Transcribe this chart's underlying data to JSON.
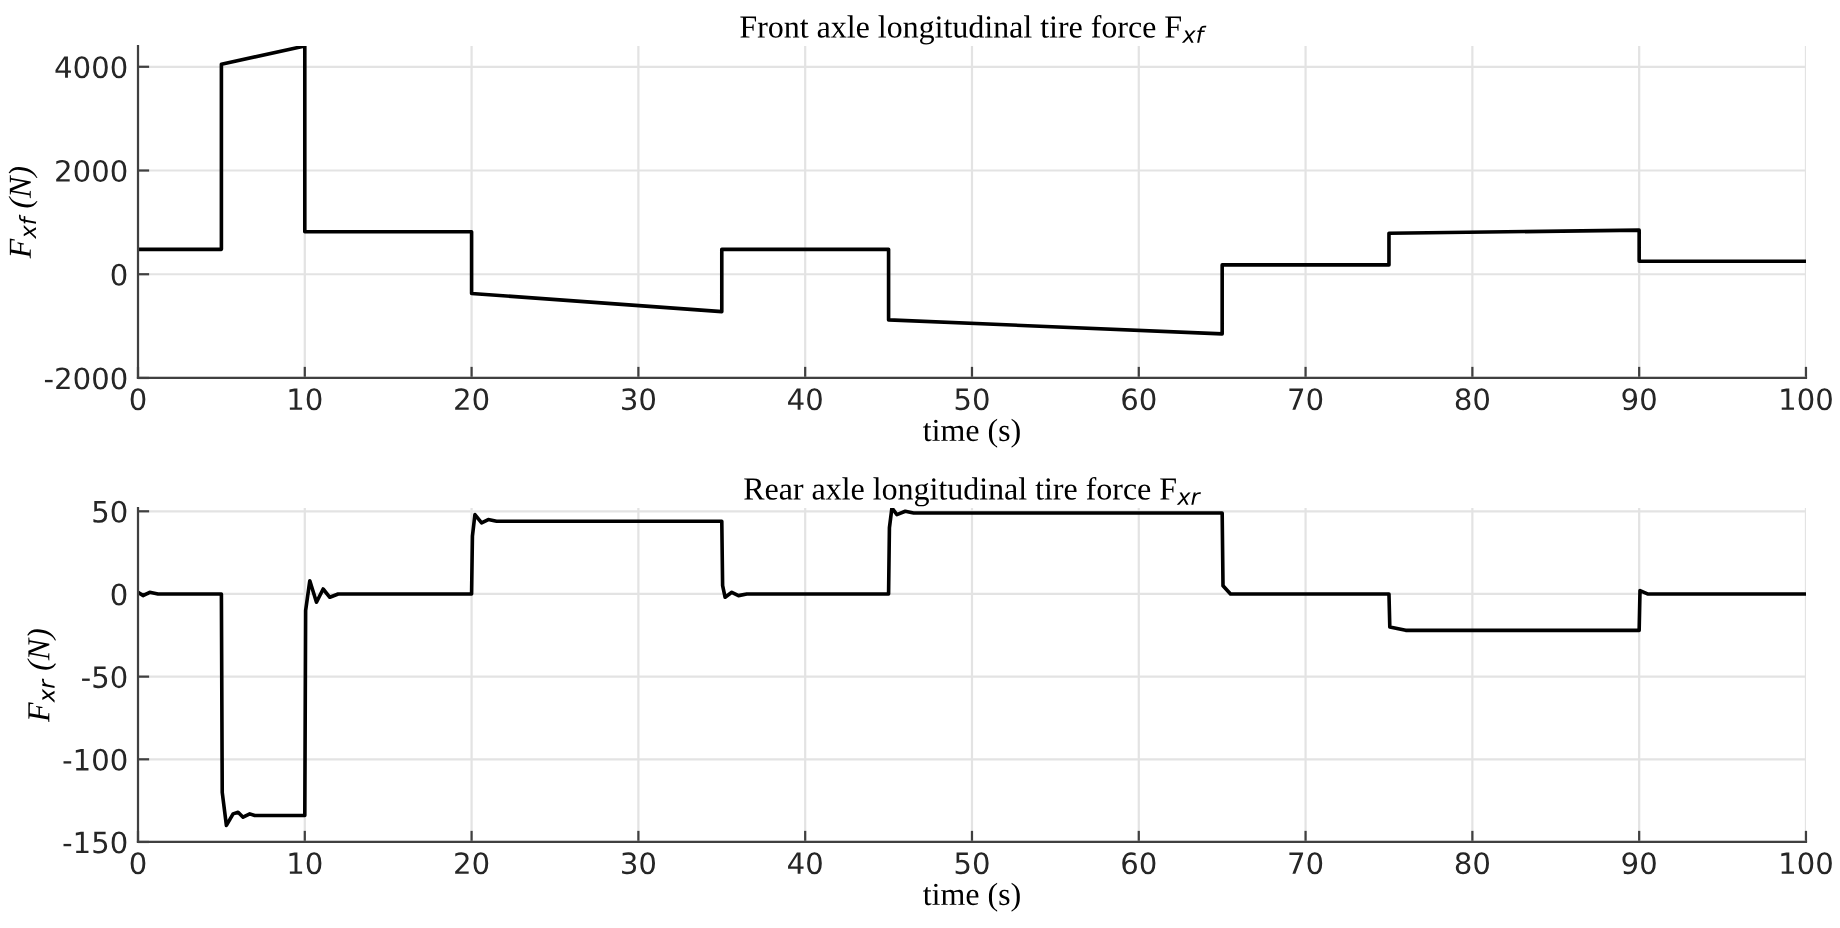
{
  "chart_data": [
    {
      "type": "line",
      "title": "Front axle longitudinal tire force F$_{xf}$",
      "xlabel": "time (s)",
      "ylabel": "F$_{xf}$ (N)",
      "series": [
        {
          "color": "#000000",
          "x": [
            0,
            5,
            5,
            10,
            10,
            20,
            20,
            35,
            35,
            45,
            45,
            65,
            65,
            75,
            75,
            90,
            90,
            100
          ],
          "values": [
            480,
            480,
            4050,
            4400,
            820,
            820,
            -370,
            -720,
            480,
            480,
            -880,
            -1150,
            180,
            180,
            790,
            850,
            250,
            250
          ]
        }
      ],
      "xlim": [
        0,
        100
      ],
      "xticks": [
        0,
        10,
        20,
        30,
        40,
        50,
        60,
        70,
        80,
        90,
        100
      ],
      "ylim": [
        -2000,
        4400
      ],
      "yticks": [
        -2000,
        0,
        2000,
        4000
      ],
      "grid": true,
      "line_style": "solid",
      "marker": "none"
    },
    {
      "type": "line",
      "title": "Rear axle longitudinal tire force F$_{xr}$",
      "xlabel": "time (s)",
      "ylabel": "F$_{xr}$ (N)",
      "series": [
        {
          "color": "#000000",
          "x": [
            0,
            0.3,
            0.7,
            1.2,
            5,
            5.05,
            5.3,
            5.7,
            6,
            6.3,
            6.7,
            7,
            10,
            10.05,
            10.3,
            10.7,
            11.1,
            11.5,
            12,
            20,
            20.05,
            20.2,
            20.6,
            21,
            21.5,
            22.5,
            35,
            35.05,
            35.2,
            35.6,
            36,
            36.5,
            45,
            45.05,
            45.2,
            45.5,
            46,
            46.5,
            47,
            65,
            65.05,
            65.5,
            66,
            75,
            75.05,
            76,
            90,
            90.05,
            90.5,
            100
          ],
          "values": [
            1,
            -1,
            1,
            0,
            0,
            -120,
            -140,
            -133,
            -132,
            -135,
            -133,
            -134,
            -134,
            -10,
            8,
            -5,
            3,
            -2,
            0,
            0,
            35,
            48,
            43,
            45,
            44,
            44,
            44,
            5,
            -2,
            1,
            -1,
            0,
            0,
            40,
            52,
            48,
            50,
            49,
            49,
            49,
            5,
            0,
            0,
            0,
            -20,
            -22,
            -22,
            2,
            0,
            0
          ]
        }
      ],
      "xlim": [
        0,
        100
      ],
      "xticks": [
        0,
        10,
        20,
        30,
        40,
        50,
        60,
        70,
        80,
        90,
        100
      ],
      "ylim": [
        -150,
        52
      ],
      "yticks": [
        -150,
        -100,
        -50,
        0,
        50
      ],
      "grid": true,
      "line_style": "solid",
      "marker": "none"
    }
  ]
}
